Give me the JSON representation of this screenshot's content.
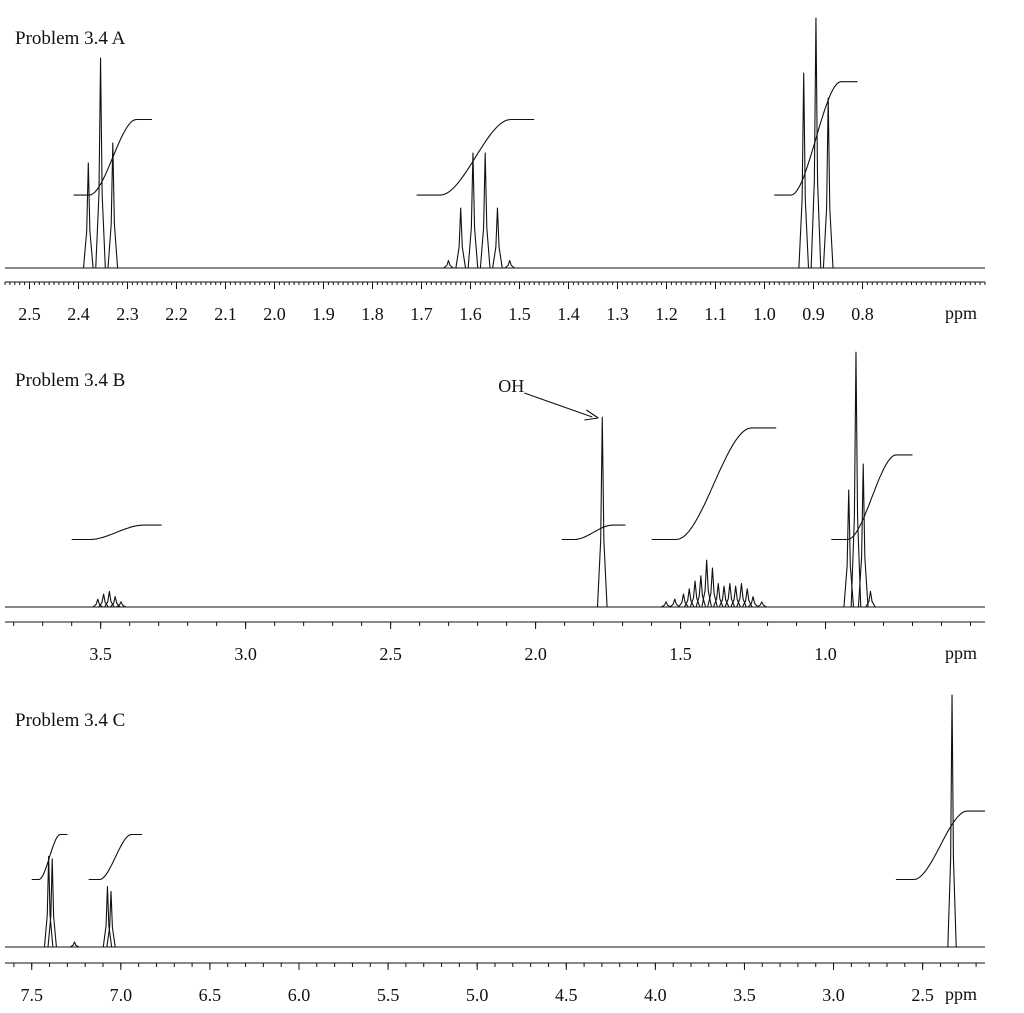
{
  "chart_data": [
    {
      "type": "line",
      "title": "Problem 3.4 A",
      "xlabel": "ppm",
      "xlim": [
        2.55,
        0.55
      ],
      "x_reversed": true,
      "major_ticks": [
        2.5,
        2.4,
        2.3,
        2.2,
        2.1,
        2.0,
        1.9,
        1.8,
        1.7,
        1.6,
        1.5,
        1.4,
        1.3,
        1.2,
        1.1,
        1.0,
        0.9,
        0.8
      ],
      "tick_labels": [
        "2.5",
        "2.4",
        "2.3",
        "2.2",
        "2.1",
        "2.0",
        "1.9",
        "1.8",
        "1.7",
        "1.6",
        "1.5",
        "1.4",
        "1.3",
        "1.2",
        "1.1",
        "1.0",
        "0.9",
        "0.8"
      ],
      "minor_tick_step": 0.01,
      "annotations": [],
      "peaks": [
        {
          "x": 2.38,
          "h": 0.42
        },
        {
          "x": 2.355,
          "h": 0.84
        },
        {
          "x": 2.33,
          "h": 0.5
        },
        {
          "x": 1.645,
          "h": 0.03
        },
        {
          "x": 1.62,
          "h": 0.24
        },
        {
          "x": 1.595,
          "h": 0.46
        },
        {
          "x": 1.57,
          "h": 0.46
        },
        {
          "x": 1.545,
          "h": 0.24
        },
        {
          "x": 1.52,
          "h": 0.03
        },
        {
          "x": 0.92,
          "h": 0.78
        },
        {
          "x": 0.895,
          "h": 1.0
        },
        {
          "x": 0.87,
          "h": 0.68
        }
      ],
      "integrals": [
        {
          "from": 2.41,
          "to": 2.25,
          "start": 0.27,
          "rise": 0.42
        },
        {
          "from": 1.71,
          "to": 1.47,
          "start": 0.27,
          "rise": 0.42
        },
        {
          "from": 0.98,
          "to": 0.81,
          "start": 0.27,
          "rise": 0.63
        }
      ]
    },
    {
      "type": "line",
      "title": "Problem 3.4 B",
      "xlabel": "ppm",
      "xlim": [
        3.83,
        0.45
      ],
      "x_reversed": true,
      "major_ticks": [
        3.5,
        3.0,
        2.5,
        2.0,
        1.5,
        1.0
      ],
      "tick_labels": [
        "3.5",
        "3.0",
        "2.5",
        "2.0",
        "1.5",
        "1.0"
      ],
      "minor_tick_step": 0.1,
      "annotations": [
        {
          "text": "OH",
          "x": 1.77
        }
      ],
      "peaks": [
        {
          "x": 3.51,
          "h": 0.03
        },
        {
          "x": 3.49,
          "h": 0.05
        },
        {
          "x": 3.47,
          "h": 0.06
        },
        {
          "x": 3.45,
          "h": 0.04
        },
        {
          "x": 3.43,
          "h": 0.02
        },
        {
          "x": 1.77,
          "h": 0.73
        },
        {
          "x": 1.55,
          "h": 0.02
        },
        {
          "x": 1.52,
          "h": 0.03
        },
        {
          "x": 1.49,
          "h": 0.05
        },
        {
          "x": 1.47,
          "h": 0.07
        },
        {
          "x": 1.45,
          "h": 0.1
        },
        {
          "x": 1.43,
          "h": 0.12
        },
        {
          "x": 1.41,
          "h": 0.18
        },
        {
          "x": 1.39,
          "h": 0.15
        },
        {
          "x": 1.37,
          "h": 0.09
        },
        {
          "x": 1.35,
          "h": 0.08
        },
        {
          "x": 1.33,
          "h": 0.09
        },
        {
          "x": 1.31,
          "h": 0.08
        },
        {
          "x": 1.29,
          "h": 0.09
        },
        {
          "x": 1.27,
          "h": 0.07
        },
        {
          "x": 1.25,
          "h": 0.04
        },
        {
          "x": 1.22,
          "h": 0.02
        },
        {
          "x": 0.92,
          "h": 0.45
        },
        {
          "x": 0.895,
          "h": 0.98
        },
        {
          "x": 0.87,
          "h": 0.55
        },
        {
          "x": 0.845,
          "h": 0.06
        }
      ],
      "integrals": [
        {
          "from": 3.6,
          "to": 3.29,
          "start": 0.25,
          "rise": 0.08
        },
        {
          "from": 1.91,
          "to": 1.69,
          "start": 0.25,
          "rise": 0.08
        },
        {
          "from": 1.6,
          "to": 1.17,
          "start": 0.25,
          "rise": 0.62
        },
        {
          "from": 0.98,
          "to": 0.7,
          "start": 0.25,
          "rise": 0.47
        }
      ]
    },
    {
      "type": "line",
      "title": "Problem 3.4 C",
      "xlabel": "ppm",
      "xlim": [
        7.65,
        2.15
      ],
      "x_reversed": true,
      "major_ticks": [
        7.5,
        7.0,
        6.5,
        6.0,
        5.5,
        5.0,
        4.5,
        4.0,
        3.5,
        3.0,
        2.5
      ],
      "tick_labels": [
        "7.5",
        "7.0",
        "6.5",
        "6.0",
        "5.5",
        "5.0",
        "4.5",
        "4.0",
        "3.5",
        "3.0",
        "2.5"
      ],
      "minor_tick_step": 0.1,
      "annotations": [],
      "peaks": [
        {
          "x": 7.405,
          "h": 0.36
        },
        {
          "x": 7.385,
          "h": 0.35
        },
        {
          "x": 7.26,
          "h": 0.02
        },
        {
          "x": 7.075,
          "h": 0.24
        },
        {
          "x": 7.055,
          "h": 0.22
        },
        {
          "x": 2.335,
          "h": 1.0
        }
      ],
      "integrals": [
        {
          "from": 7.5,
          "to": 7.3,
          "start": 0.25,
          "rise": 0.25
        },
        {
          "from": 7.18,
          "to": 6.88,
          "start": 0.25,
          "rise": 0.25
        },
        {
          "from": 2.65,
          "to": 2.15,
          "start": 0.25,
          "rise": 0.38
        }
      ]
    }
  ]
}
